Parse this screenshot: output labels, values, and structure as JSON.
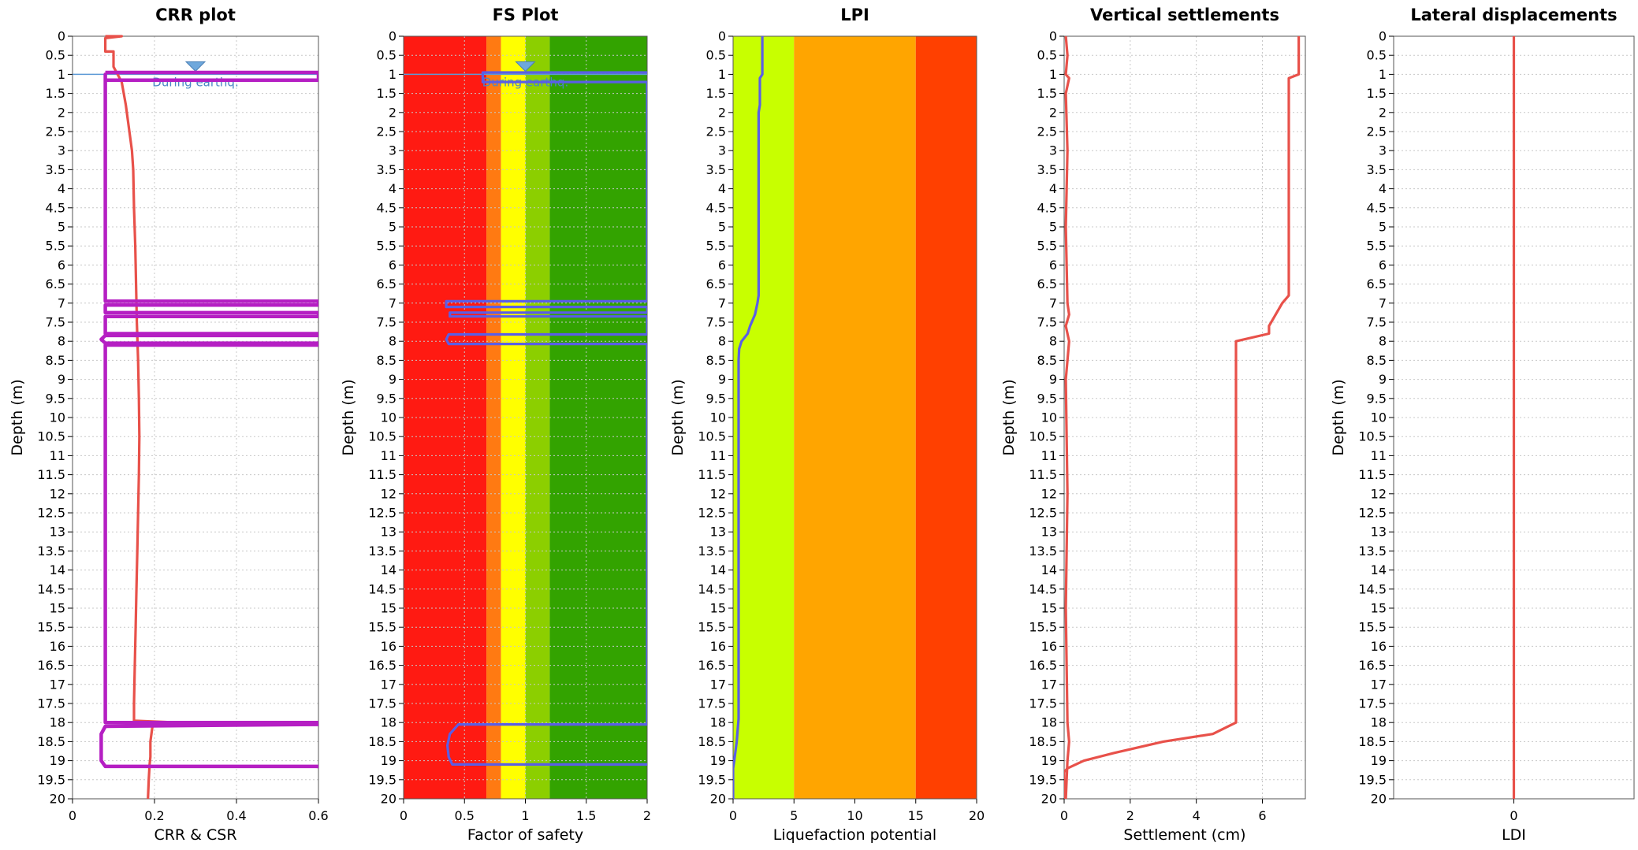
{
  "chart_data": [
    {
      "type": "line",
      "title": "CRR plot",
      "xlabel": "CRR & CSR",
      "ylabel": "Depth (m)",
      "xlim": [
        0,
        0.6
      ],
      "ylim": [
        0,
        20
      ],
      "y_inverted": true,
      "xticks": [
        0,
        0.2,
        0.4,
        0.6
      ],
      "grid": true,
      "water_table": {
        "depth": 1,
        "x": 0.3,
        "label": "During earthq."
      },
      "series": [
        {
          "color": "#e8514a",
          "points": [
            [
              0.08,
              0
            ],
            [
              0.12,
              0
            ],
            [
              0.08,
              0.05
            ],
            [
              0.08,
              0.3
            ],
            [
              0.08,
              0.4
            ],
            [
              0.1,
              0.4
            ],
            [
              0.1,
              0.8
            ],
            [
              0.11,
              1.0
            ],
            [
              0.12,
              1.2
            ],
            [
              0.125,
              1.5
            ],
            [
              0.13,
              1.8
            ],
            [
              0.135,
              2.2
            ],
            [
              0.14,
              2.6
            ],
            [
              0.145,
              3.0
            ],
            [
              0.148,
              3.5
            ],
            [
              0.15,
              4.5
            ],
            [
              0.153,
              5.5
            ],
            [
              0.155,
              6.5
            ],
            [
              0.157,
              7.5
            ],
            [
              0.16,
              8.5
            ],
            [
              0.162,
              9.5
            ],
            [
              0.163,
              10.5
            ],
            [
              0.162,
              11.5
            ],
            [
              0.16,
              12.5
            ],
            [
              0.158,
              13.5
            ],
            [
              0.156,
              14.5
            ],
            [
              0.154,
              15.5
            ],
            [
              0.152,
              16.5
            ],
            [
              0.15,
              17.5
            ],
            [
              0.15,
              17.95
            ],
            [
              0.26,
              18.0
            ],
            [
              0.2,
              18.05
            ],
            [
              0.195,
              18.1
            ],
            [
              0.19,
              18.5
            ],
            [
              0.19,
              18.9
            ],
            [
              0.188,
              19.1
            ],
            [
              0.186,
              19.5
            ],
            [
              0.184,
              20.0
            ]
          ]
        },
        {
          "color": "#b51fc3",
          "points": [
            [
              0.08,
              0.95
            ],
            [
              0.6,
              0.95
            ],
            [
              0.6,
              1.15
            ],
            [
              0.08,
              1.15
            ],
            [
              0.08,
              1.0
            ],
            [
              0.08,
              6.95
            ],
            [
              0.6,
              6.95
            ],
            [
              0.6,
              7.05
            ],
            [
              0.08,
              7.05
            ],
            [
              0.08,
              7.25
            ],
            [
              0.6,
              7.25
            ],
            [
              0.6,
              7.35
            ],
            [
              0.08,
              7.35
            ],
            [
              0.08,
              7.8
            ],
            [
              0.6,
              7.8
            ],
            [
              0.6,
              7.85
            ],
            [
              0.08,
              7.85
            ],
            [
              0.07,
              7.95
            ],
            [
              0.08,
              8.05
            ],
            [
              0.6,
              8.05
            ],
            [
              0.6,
              8.1
            ],
            [
              0.08,
              8.1
            ],
            [
              0.08,
              18.0
            ],
            [
              0.6,
              18.0
            ],
            [
              0.6,
              18.05
            ],
            [
              0.08,
              18.1
            ],
            [
              0.07,
              18.3
            ],
            [
              0.07,
              19.0
            ],
            [
              0.08,
              19.15
            ],
            [
              0.6,
              19.15
            ],
            [
              0.6,
              19.2
            ]
          ]
        }
      ]
    },
    {
      "type": "line",
      "title": "FS Plot",
      "xlabel": "Factor of safety",
      "ylabel": "Depth (m)",
      "xlim": [
        0,
        2
      ],
      "ylim": [
        0,
        20
      ],
      "y_inverted": true,
      "xticks": [
        0,
        0.5,
        1,
        1.5,
        2
      ],
      "grid": true,
      "water_table": {
        "depth": 1,
        "x": 1.0,
        "label": "During earthq."
      },
      "bands": [
        {
          "from": 0,
          "to": 0.68,
          "color": "#ff1a12"
        },
        {
          "from": 0.68,
          "to": 0.8,
          "color": "#ff7a12"
        },
        {
          "from": 0.8,
          "to": 1.0,
          "color": "#ffff00"
        },
        {
          "from": 1.0,
          "to": 1.2,
          "color": "#8ccf00"
        },
        {
          "from": 1.2,
          "to": 2.0,
          "color": "#33a300"
        }
      ],
      "series": [
        {
          "color": "#5a5ee6",
          "points": [
            [
              2,
              0.95
            ],
            [
              0.65,
              0.95
            ],
            [
              0.65,
              1.2
            ],
            [
              2,
              1.2
            ],
            [
              2,
              6.95
            ],
            [
              0.35,
              6.95
            ],
            [
              0.35,
              7.1
            ],
            [
              2,
              7.1
            ],
            [
              2,
              7.25
            ],
            [
              0.38,
              7.25
            ],
            [
              0.38,
              7.35
            ],
            [
              2,
              7.35
            ],
            [
              2,
              7.82
            ],
            [
              0.37,
              7.82
            ],
            [
              0.35,
              7.95
            ],
            [
              0.37,
              8.07
            ],
            [
              2,
              8.07
            ],
            [
              2,
              18.05
            ],
            [
              0.45,
              18.05
            ],
            [
              0.38,
              18.3
            ],
            [
              0.36,
              18.6
            ],
            [
              0.37,
              18.9
            ],
            [
              0.4,
              19.1
            ],
            [
              2,
              19.1
            ]
          ]
        }
      ]
    },
    {
      "type": "line",
      "title": "LPI",
      "xlabel": "Liquefaction potential",
      "ylabel": "Depth (m)",
      "xlim": [
        0,
        20
      ],
      "ylim": [
        0,
        20
      ],
      "y_inverted": true,
      "xticks": [
        0,
        5,
        10,
        15,
        20
      ],
      "grid": false,
      "bands": [
        {
          "from": 0,
          "to": 5,
          "color": "#c8ff00"
        },
        {
          "from": 5,
          "to": 15,
          "color": "#ffa500"
        },
        {
          "from": 15,
          "to": 20,
          "color": "#ff4000"
        }
      ],
      "series": [
        {
          "color": "#5a5ee6",
          "points": [
            [
              2.4,
              0
            ],
            [
              2.4,
              1.0
            ],
            [
              2.2,
              1.1
            ],
            [
              2.2,
              1.8
            ],
            [
              2.1,
              2.0
            ],
            [
              2.1,
              6.8
            ],
            [
              2.0,
              7.0
            ],
            [
              1.8,
              7.3
            ],
            [
              1.4,
              7.6
            ],
            [
              1.2,
              7.8
            ],
            [
              0.7,
              8.0
            ],
            [
              0.5,
              8.2
            ],
            [
              0.45,
              8.5
            ],
            [
              0.45,
              17.9
            ],
            [
              0.4,
              18.1
            ],
            [
              0.3,
              18.5
            ],
            [
              0.1,
              19.0
            ],
            [
              0,
              19.2
            ],
            [
              0,
              20
            ]
          ]
        }
      ]
    },
    {
      "type": "line",
      "title": "Vertical settlements",
      "xlabel": "Settlement (cm)",
      "ylabel": "Depth (m)",
      "xlim": [
        0,
        7.3
      ],
      "ylim": [
        0,
        20
      ],
      "y_inverted": true,
      "xticks": [
        0,
        2,
        4,
        6
      ],
      "grid": true,
      "series": [
        {
          "color": "#e8514a",
          "points": [
            [
              7.1,
              0
            ],
            [
              7.1,
              1.0
            ],
            [
              6.8,
              1.1
            ],
            [
              6.8,
              6.8
            ],
            [
              6.6,
              7.0
            ],
            [
              6.4,
              7.3
            ],
            [
              6.2,
              7.6
            ],
            [
              6.2,
              7.8
            ],
            [
              5.2,
              8.0
            ],
            [
              5.2,
              18.0
            ],
            [
              4.5,
              18.3
            ],
            [
              3.0,
              18.5
            ],
            [
              1.5,
              18.8
            ],
            [
              0.6,
              19.0
            ],
            [
              0.1,
              19.2
            ],
            [
              0,
              19.3
            ],
            [
              0,
              20
            ]
          ]
        },
        {
          "color": "#e8514a",
          "points": [
            [
              0.05,
              0
            ],
            [
              0.1,
              0.5
            ],
            [
              0.05,
              1.0
            ],
            [
              0.15,
              1.1
            ],
            [
              0.05,
              1.5
            ],
            [
              0.1,
              3
            ],
            [
              0.05,
              5
            ],
            [
              0.1,
              7
            ],
            [
              0.15,
              7.3
            ],
            [
              0.05,
              7.6
            ],
            [
              0.15,
              8.0
            ],
            [
              0.05,
              9
            ],
            [
              0.1,
              12
            ],
            [
              0.05,
              15
            ],
            [
              0.1,
              18
            ],
            [
              0.15,
              18.5
            ],
            [
              0.1,
              19
            ],
            [
              0.05,
              20
            ]
          ]
        }
      ]
    },
    {
      "type": "line",
      "title": "Lateral displacements",
      "xlabel": "LDI",
      "ylabel": "Depth (m)",
      "xlim": [
        -1,
        1
      ],
      "ylim": [
        0,
        20
      ],
      "y_inverted": true,
      "xticks": [
        0
      ],
      "grid": true,
      "series": [
        {
          "color": "#e8514a",
          "points": [
            [
              0,
              0
            ],
            [
              0,
              20
            ]
          ]
        }
      ]
    }
  ]
}
